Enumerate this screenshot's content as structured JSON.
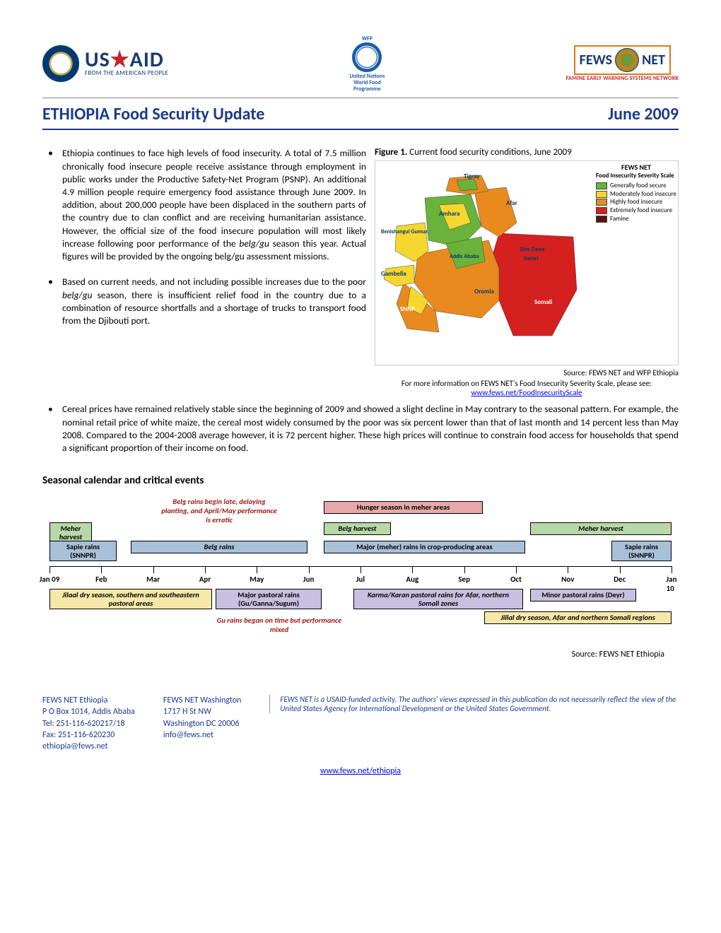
{
  "logos": {
    "usaid_main": "USAID",
    "usaid_tag": "FROM THE AMERICAN PEOPLE",
    "wfp_line1": "United Nations",
    "wfp_line2": "World Food",
    "wfp_line3": "Programme",
    "wfp_top": "WFP",
    "fews_left": "FEWS",
    "fews_right": "NET",
    "fews_tag": "FAMINE EARLY WARNING SYSTEMS NETWORK"
  },
  "title": {
    "left": "ETHIOPIA Food Security Update",
    "right": "June 2009"
  },
  "bullets": {
    "b1": "Ethiopia continues to face high levels of food insecurity. A total of 7.5 million chronically food insecure people receive assistance through employment in public works under the Productive Safety-Net Program (PSNP). An additional 4.9 million people require emergency food assistance through June 2009. In addition, about 200,000 people have been displaced in the southern parts of the country due to clan conflict and are receiving humanitarian assistance. However, the official size of the food insecure population will most likely increase following poor performance of the belg/gu season this year. Actual figures will be provided by the ongoing belg/gu assessment missions.",
    "b2": "Based on current needs, and not including possible increases due to the poor belg/gu season, there is insufficient relief food in the country due to a combination of resource shortfalls and a shortage of trucks to transport food from the Djibouti port.",
    "b3": "Cereal prices have remained relatively stable since the beginning of 2009 and showed a slight decline in May contrary to the seasonal pattern. For example, the nominal retail price of white maize, the cereal most widely consumed by the poor was six percent lower than that of last month and 14 percent less than May 2008. Compared to the 2004-2008 average however, it is 72 percent higher. These high prices will continue to constrain food access for households that spend a significant proportion of their income on food."
  },
  "figure": {
    "label": "Figure 1.",
    "caption": "Current food security conditions, June 2009",
    "legend_title": "FEWS NET",
    "legend_sub": "Food Insecurity Severity Scale",
    "legend_items": [
      {
        "color": "#6bb23a",
        "label": "Generally food secure"
      },
      {
        "color": "#f5d730",
        "label": "Moderately food insecure"
      },
      {
        "color": "#e88a1e",
        "label": "Highly food insecure"
      },
      {
        "color": "#d4201e",
        "label": "Extremely food insecure"
      },
      {
        "color": "#5a1010",
        "label": "Famine"
      }
    ],
    "regions": {
      "tigray": "Tigray",
      "afar": "Afar",
      "amhara": "Amhara",
      "benishangul": "Benishangul Gumuz",
      "addis": "Addis Ababa",
      "diredawa": "Dire Dawa",
      "harari": "Harari",
      "gambella": "Gambella",
      "snnp": "SNNP",
      "oromia": "Oromia",
      "somali": "Somali"
    },
    "source": "Source: FEWS NET and WFP Ethiopia",
    "link_intro": "For more information on FEWS NET's Food Insecurity Severity Scale, please see: ",
    "link_text": "www.fews.net/FoodInsecurityScale"
  },
  "section2_heading": "Seasonal calendar and critical events",
  "calendar": {
    "months": [
      "Jan 09",
      "Feb",
      "Mar",
      "Apr",
      "May",
      "Jun",
      "Jul",
      "Aug",
      "Sep",
      "Oct",
      "Nov",
      "Dec",
      "Jan 10"
    ],
    "colors": {
      "green": "#b8d8a8",
      "pink": "#e8a8a8",
      "blue": "#a8c0d8",
      "lav": "#c8c0e0",
      "yellow": "#f5e8a8"
    },
    "note1": "Belg rains begin late, delaying planting, and April/May performance is erratic",
    "note2": "Gu rains began on time but performance mixed",
    "boxes": {
      "meher_harvest_l": "Meher harvest",
      "hunger": "Hunger season in meher areas",
      "belg_harvest": "Belg harvest",
      "meher_harvest_r": "Meher harvest",
      "sapie_l": "Sapie rains (SNNPR)",
      "belg_rains": "Belg rains",
      "major_rains": "Major (meher) rains in crop-producing areas",
      "sapie_r": "Sapie rains (SNNPR)",
      "jilaal_l": "Jilaal dry season, southern and southeastern pastoral areas",
      "gu": "Major pastoral rains (Gu/Ganna/Sugum)",
      "karma": "Karma/Karan pastoral rains for Afar, northern Somali zones",
      "deyr": "Minor pastoral rains (Deyr)",
      "jillal_r": "Jillal dry season, Afar and northern Somali regions"
    },
    "source": "Source: FEWS NET Ethiopia"
  },
  "footer": {
    "col1": {
      "name": "FEWS NET Ethiopia",
      "addr": "P O Box 1014, Addis Ababa",
      "tel": "Tel: 251-116-620217/18",
      "fax": "Fax: 251-116-620230",
      "email": "ethiopia@fews.net"
    },
    "col2": {
      "name": "FEWS NET Washington",
      "addr": "1717 H St NW",
      "city": "Washington DC 20006",
      "email": "info@fews.net"
    },
    "disclaimer": "FEWS NET is a USAID-funded activity.  The authors' views expressed in this publication do not necessarily reflect the view of the United States Agency for International Development or the United States Government.",
    "url": "www.fews.net/ethiopia"
  }
}
